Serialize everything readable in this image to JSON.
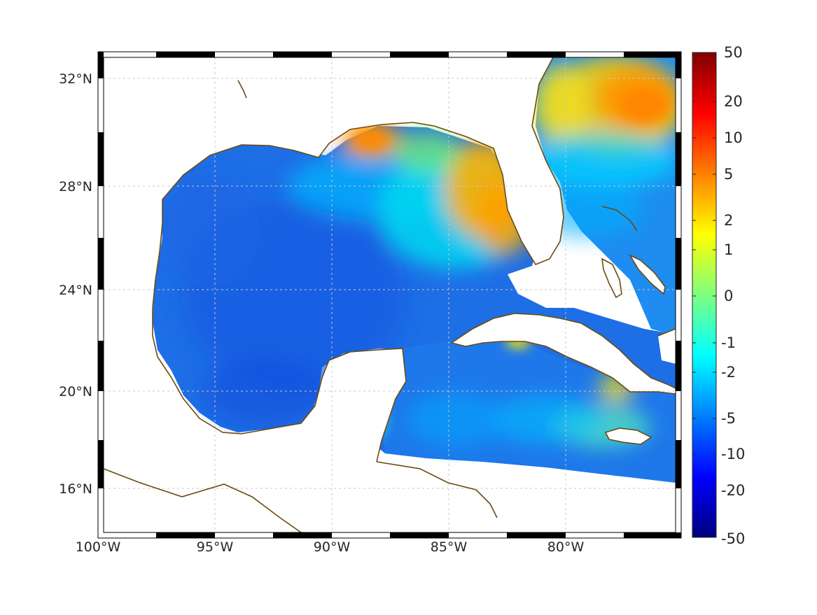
{
  "map": {
    "lon_labels": [
      "100°W",
      "95°W",
      "90°W",
      "85°W",
      "80°W"
    ],
    "lat_labels": [
      "32°N",
      "28°N",
      "24°N",
      "20°N",
      "16°N"
    ],
    "lon_range": [
      -100,
      -75
    ],
    "lat_range": [
      14.3,
      33.0
    ]
  },
  "colorbar": {
    "tick_labels": [
      "50",
      "20",
      "10",
      "5",
      "2",
      "1",
      "0",
      "-1",
      "-2",
      "-5",
      "-10",
      "-20",
      "-50"
    ],
    "colormap": "jet",
    "colors": [
      "#00007f",
      "#0000ff",
      "#007fff",
      "#00ffff",
      "#7fff7f",
      "#ffff00",
      "#ff7f00",
      "#ff0000",
      "#7f0000"
    ]
  },
  "colors": {
    "coastline": "#6b4a10",
    "grid": "#c8c8c8",
    "field_base": "#1e6ee6"
  }
}
